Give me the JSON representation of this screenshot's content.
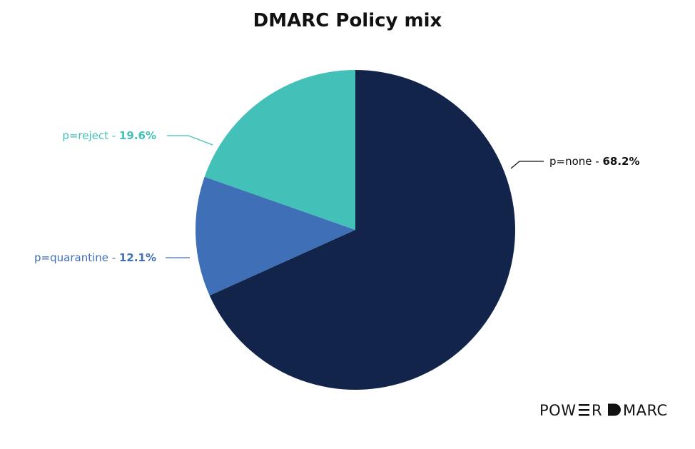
{
  "chart_data": {
    "type": "pie",
    "title": "DMARC Policy mix",
    "slices": [
      {
        "label": "p=none",
        "value": 68.2,
        "display": "68.2%",
        "color": "#12244a"
      },
      {
        "label": "p=quarantine",
        "value": 12.1,
        "display": "12.1%",
        "color": "#3f6fb6"
      },
      {
        "label": "p=reject",
        "value": 19.6,
        "display": "19.6%",
        "color": "#43c0b7"
      }
    ],
    "label_separator": " - "
  },
  "logo": {
    "text": "POWERDMARC"
  }
}
